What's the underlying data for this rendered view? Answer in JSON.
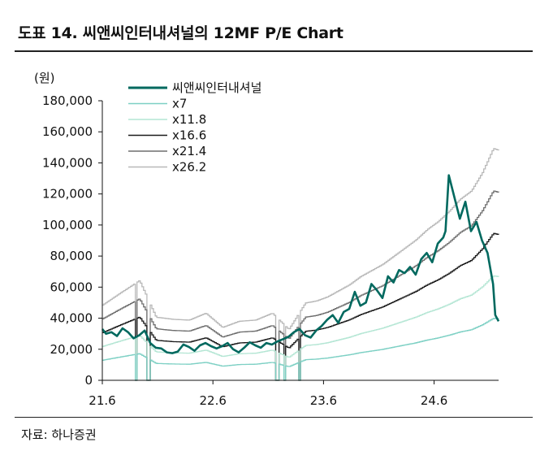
{
  "header": {
    "title": "도표 14. 씨앤씨인터내셔널의 12MF P/E Chart"
  },
  "footer": {
    "source": "자료: 하나증권"
  },
  "chart_data": {
    "type": "line",
    "title": "도표 14. 씨앤씨인터내셔널의 12MF P/E Chart",
    "ylabel": "(원)",
    "xlabel": "",
    "x_tick_labels": [
      "21.6",
      "22.6",
      "23.6",
      "24.6"
    ],
    "x_ticks": [
      2021.417,
      2022.417,
      2023.417,
      2024.417
    ],
    "xlim": [
      2021.417,
      2025.0
    ],
    "ylim": [
      0,
      180000
    ],
    "y_ticks": [
      0,
      20000,
      40000,
      60000,
      80000,
      100000,
      120000,
      140000,
      160000,
      180000
    ],
    "y_tick_labels": [
      "0",
      "20,000",
      "40,000",
      "60,000",
      "80,000",
      "100,000",
      "120,000",
      "140,000",
      "160,000",
      "180,000"
    ],
    "grid": false,
    "legend_position": "top-left",
    "eps": {
      "x": [
        2021.417,
        2021.58,
        2021.75,
        2021.9,
        2022.05,
        2022.2,
        2022.35,
        2022.5,
        2022.65,
        2022.8,
        2022.95,
        2023.1,
        2023.25,
        2023.35,
        2023.45,
        2023.55,
        2023.65,
        2023.75,
        2023.85,
        2023.95,
        2024.05,
        2024.15,
        2024.25,
        2024.35,
        2024.45,
        2024.55,
        2024.65,
        2024.75,
        2024.85,
        2024.95,
        2025.0
      ],
      "values": [
        1850,
        2150,
        2450,
        1550,
        1500,
        1480,
        1650,
        1300,
        1450,
        1480,
        1650,
        1250,
        1900,
        1950,
        2050,
        2200,
        2350,
        2550,
        2700,
        2850,
        3050,
        3250,
        3450,
        3700,
        3900,
        4150,
        4450,
        4650,
        5100,
        5700,
        5650
      ]
    },
    "eps_gaps": [
      [
        2021.71,
        2021.73
      ],
      [
        2021.81,
        2021.84
      ],
      [
        2022.98,
        2023.0
      ],
      [
        2023.05,
        2023.07
      ],
      [
        2023.18,
        2023.2
      ]
    ],
    "series": [
      {
        "name": "씨앤씨인터내셔널",
        "color": "#00695f",
        "x": [
          2021.417,
          2021.45,
          2021.5,
          2021.55,
          2021.6,
          2021.65,
          2021.7,
          2021.75,
          2021.8,
          2021.85,
          2021.9,
          2021.95,
          2022.0,
          2022.05,
          2022.1,
          2022.15,
          2022.2,
          2022.25,
          2022.3,
          2022.35,
          2022.4,
          2022.45,
          2022.5,
          2022.55,
          2022.6,
          2022.65,
          2022.7,
          2022.75,
          2022.8,
          2022.85,
          2022.9,
          2022.95,
          2023.0,
          2023.05,
          2023.1,
          2023.15,
          2023.2,
          2023.25,
          2023.3,
          2023.35,
          2023.4,
          2023.45,
          2023.5,
          2023.55,
          2023.6,
          2023.65,
          2023.7,
          2023.75,
          2023.8,
          2023.85,
          2023.9,
          2023.95,
          2024.0,
          2024.05,
          2024.1,
          2024.15,
          2024.2,
          2024.25,
          2024.3,
          2024.35,
          2024.4,
          2024.45,
          2024.5,
          2024.52,
          2024.55,
          2024.6,
          2024.65,
          2024.7,
          2024.75,
          2024.8,
          2024.85,
          2024.9,
          2024.95,
          2024.97,
          2025.0
        ],
        "values": [
          33000,
          30000,
          31000,
          28500,
          33500,
          31000,
          27000,
          29000,
          32000,
          24000,
          21000,
          20500,
          18000,
          17500,
          18500,
          23000,
          21500,
          19000,
          22500,
          24000,
          22000,
          20500,
          22000,
          24000,
          20000,
          18000,
          21000,
          24500,
          22500,
          21000,
          24000,
          23000,
          25000,
          26500,
          28000,
          31000,
          33000,
          29000,
          27500,
          32000,
          35000,
          39000,
          42000,
          37000,
          44000,
          46000,
          57000,
          48000,
          50000,
          62000,
          58000,
          53000,
          67000,
          63000,
          71000,
          69000,
          73000,
          68000,
          78000,
          82000,
          76000,
          88000,
          92000,
          96000,
          132000,
          118000,
          104000,
          115000,
          96000,
          102000,
          90000,
          82000,
          62000,
          42000,
          38000
        ]
      },
      {
        "name": "x7",
        "color": "#7dd0c4",
        "multiple": 7
      },
      {
        "name": "x11.8",
        "color": "#b4e6d4",
        "multiple": 11.8
      },
      {
        "name": "x16.6",
        "color": "#1a1a1a",
        "multiple": 16.6
      },
      {
        "name": "x21.4",
        "color": "#6e6e6e",
        "multiple": 21.4
      },
      {
        "name": "x26.2",
        "color": "#b8b8b8",
        "multiple": 26.2
      }
    ]
  }
}
